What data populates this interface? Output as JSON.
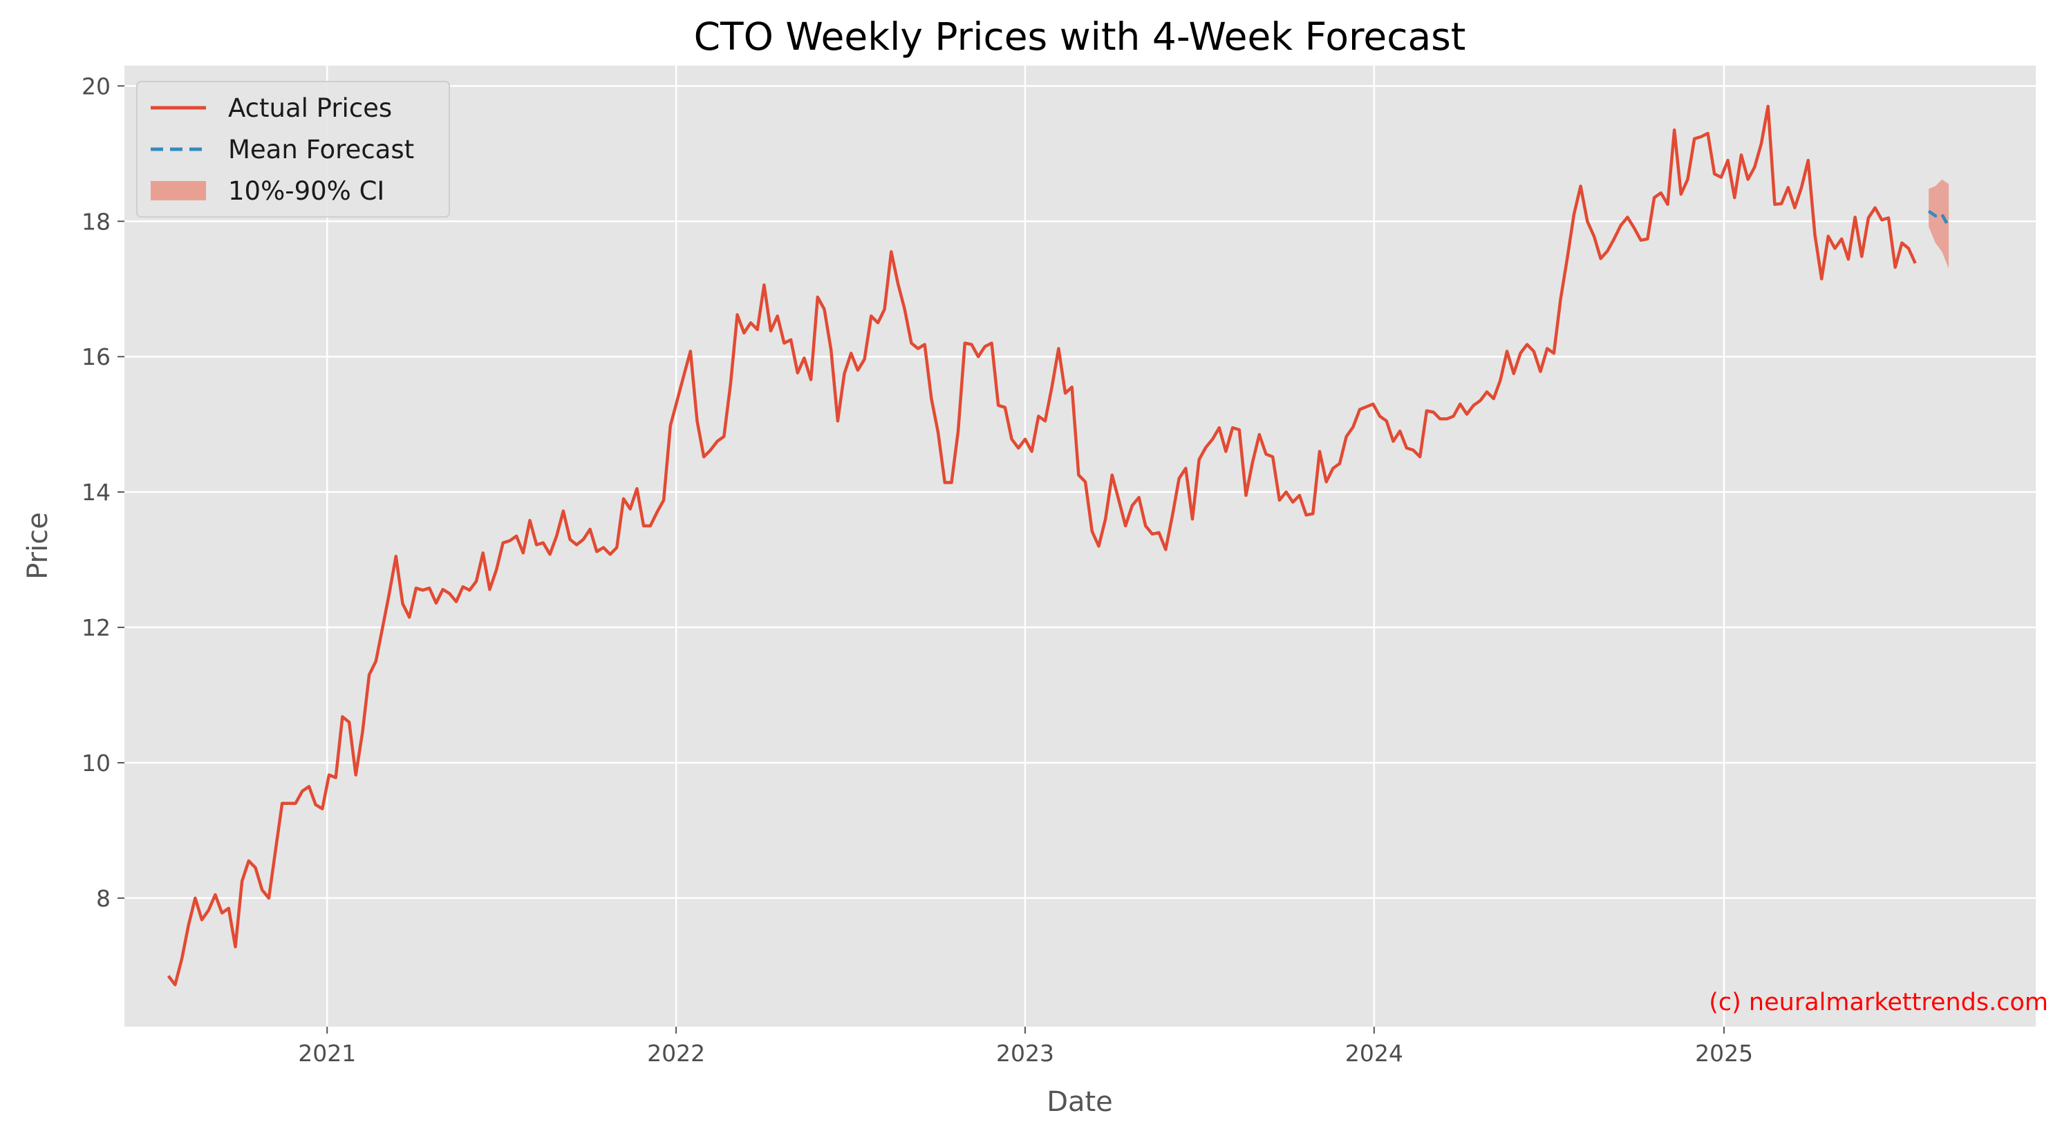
{
  "colors": {
    "actual": "#E24A33",
    "forecast": "#348ABD",
    "ci": "#E8A093",
    "plot_bg": "#E5E5E5",
    "grid": "#FFFFFF",
    "watermark": "#FF0000"
  },
  "watermark": "(c) neuralmarkettrends.com",
  "chart_data": {
    "type": "line",
    "title": "CTO Weekly Prices with 4-Week Forecast",
    "xlabel": "Date",
    "ylabel": "Price",
    "x_axis_type": "date",
    "xlim": [
      "2020-06-03",
      "2025-11-23"
    ],
    "ylim": [
      6.1,
      20.3
    ],
    "x_ticks": [
      {
        "date": "2021-01-01",
        "label": "2021"
      },
      {
        "date": "2022-01-01",
        "label": "2022"
      },
      {
        "date": "2023-01-01",
        "label": "2023"
      },
      {
        "date": "2024-01-01",
        "label": "2024"
      },
      {
        "date": "2025-01-01",
        "label": "2025"
      }
    ],
    "y_ticks": [
      8,
      10,
      12,
      14,
      16,
      18,
      20
    ],
    "grid": true,
    "legend": {
      "position": "top-left",
      "entries": [
        {
          "label": "Actual Prices",
          "style": "line"
        },
        {
          "label": "Mean Forecast",
          "style": "dashed"
        },
        {
          "label": "10%-90% CI",
          "style": "patch"
        }
      ]
    },
    "series": [
      {
        "name": "Actual Prices",
        "start_date": "2020-07-19",
        "interval_days": 7,
        "values": [
          6.85,
          6.72,
          7.1,
          7.6,
          8.0,
          7.68,
          7.82,
          8.05,
          7.78,
          7.85,
          7.28,
          8.25,
          8.55,
          8.45,
          8.12,
          8.0,
          8.7,
          9.4,
          9.4,
          9.4,
          9.58,
          9.65,
          9.38,
          9.32,
          9.82,
          9.78,
          10.68,
          10.6,
          9.82,
          10.45,
          11.3,
          11.5,
          12.0,
          12.5,
          13.05,
          12.35,
          12.15,
          12.58,
          12.55,
          12.58,
          12.36,
          12.56,
          12.5,
          12.38,
          12.6,
          12.55,
          12.68,
          13.1,
          12.56,
          12.85,
          13.25,
          13.28,
          13.35,
          13.1,
          13.58,
          13.22,
          13.25,
          13.08,
          13.35,
          13.72,
          13.3,
          13.22,
          13.3,
          13.45,
          13.12,
          13.18,
          13.08,
          13.18,
          13.9,
          13.75,
          14.05,
          13.5,
          13.5,
          13.7,
          13.88,
          14.98,
          15.35,
          15.72,
          16.08,
          15.05,
          14.52,
          14.62,
          14.75,
          14.82,
          15.6,
          16.62,
          16.35,
          16.5,
          16.4,
          17.06,
          16.38,
          16.6,
          16.2,
          16.25,
          15.76,
          15.98,
          15.66,
          16.88,
          16.7,
          16.1,
          15.05,
          15.75,
          16.05,
          15.8,
          15.96,
          16.6,
          16.5,
          16.7,
          17.55,
          17.08,
          16.7,
          16.2,
          16.12,
          16.18,
          15.38,
          14.88,
          14.14,
          14.14,
          14.9,
          16.2,
          16.18,
          16.0,
          16.15,
          16.2,
          15.28,
          15.25,
          14.78,
          14.65,
          14.78,
          14.6,
          15.12,
          15.05,
          15.55,
          16.12,
          15.46,
          15.55,
          14.25,
          14.15,
          13.42,
          13.2,
          13.6,
          14.25,
          13.88,
          13.5,
          13.8,
          13.92,
          13.5,
          13.38,
          13.4,
          13.15,
          13.65,
          14.2,
          14.35,
          13.6,
          14.48,
          14.66,
          14.78,
          14.95,
          14.6,
          14.95,
          14.92,
          13.95,
          14.45,
          14.85,
          14.56,
          14.52,
          13.88,
          14.0,
          13.85,
          13.95,
          13.66,
          13.68,
          14.6,
          14.15,
          14.35,
          14.42,
          14.82,
          14.96,
          15.22,
          15.26,
          15.3,
          15.12,
          15.05,
          14.75,
          14.9,
          14.65,
          14.62,
          14.52,
          15.2,
          15.18,
          15.08,
          15.08,
          15.12,
          15.3,
          15.15,
          15.28,
          15.35,
          15.48,
          15.38,
          15.65,
          16.08,
          15.75,
          16.05,
          16.18,
          16.08,
          15.78,
          16.12,
          16.05,
          16.85,
          17.45,
          18.1,
          18.52,
          18.0,
          17.78,
          17.45,
          17.56,
          17.74,
          17.94,
          18.06,
          17.9,
          17.72,
          17.74,
          18.35,
          18.42,
          18.25,
          19.35,
          18.4,
          18.62,
          19.22,
          19.25,
          19.3,
          18.7,
          18.65,
          18.9,
          18.35,
          18.98,
          18.62,
          18.8,
          19.15,
          19.7,
          18.25,
          18.26,
          18.5,
          18.2,
          18.5,
          18.9,
          17.8,
          17.15,
          17.78,
          17.6,
          17.74,
          17.44,
          18.06,
          17.48,
          18.05,
          18.2,
          18.02,
          18.05,
          17.32,
          17.68,
          17.6,
          17.38
        ]
      },
      {
        "name": "Mean Forecast",
        "x": [
          "2025-08-03",
          "2025-08-10",
          "2025-08-17",
          "2025-08-24"
        ],
        "values": [
          18.15,
          18.08,
          18.1,
          17.92
        ]
      },
      {
        "name": "10%-90% CI",
        "x": [
          "2025-08-03",
          "2025-08-10",
          "2025-08-17",
          "2025-08-24"
        ],
        "upper": [
          18.48,
          18.52,
          18.62,
          18.55
        ],
        "lower": [
          17.92,
          17.68,
          17.55,
          17.3
        ]
      }
    ]
  }
}
